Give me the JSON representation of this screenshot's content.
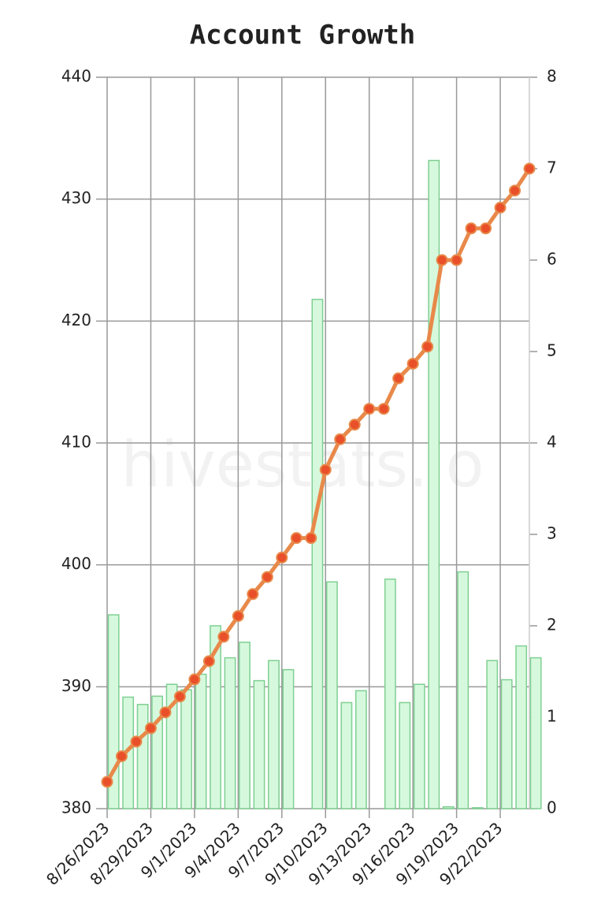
{
  "chart_data": {
    "type": "bar-line",
    "title": "Account Growth",
    "watermark": "hivestats.io",
    "categories": [
      "8/26/2023",
      null,
      null,
      "8/29/2023",
      null,
      null,
      "9/1/2023",
      null,
      null,
      "9/4/2023",
      null,
      null,
      "9/7/2023",
      null,
      null,
      "9/10/2023",
      null,
      null,
      "9/13/2023",
      null,
      null,
      "9/16/2023",
      null,
      null,
      "9/19/2023",
      null,
      null,
      "9/22/2023",
      null,
      null
    ],
    "series": [
      {
        "type": "bar",
        "axis": "y2",
        "color": "#d6f9dd",
        "edge_color": "#7fcf92",
        "values": [
          2.12,
          1.22,
          1.14,
          1.23,
          1.36,
          1.3,
          1.47,
          2.0,
          1.65,
          1.82,
          1.4,
          1.62,
          1.52,
          0,
          5.57,
          2.48,
          1.16,
          1.29,
          0,
          2.51,
          1.16,
          1.36,
          7.09,
          0.02,
          2.59,
          0.01,
          1.62,
          1.41,
          1.78,
          1.65
        ]
      },
      {
        "type": "line",
        "axis": "y",
        "color": "#e8894a",
        "marker_color": "#e9502a",
        "values": [
          382.2,
          384.3,
          385.5,
          386.6,
          387.9,
          389.2,
          390.6,
          392.1,
          394.1,
          395.8,
          397.6,
          399.0,
          400.6,
          402.2,
          402.2,
          407.8,
          410.3,
          411.5,
          412.8,
          412.8,
          415.3,
          416.5,
          417.9,
          425.0,
          425.0,
          427.6,
          427.6,
          429.3,
          430.7,
          432.5
        ]
      }
    ],
    "ylim": [
      380,
      440
    ],
    "yticks": [
      380,
      390,
      400,
      410,
      420,
      430,
      440
    ],
    "y2lim": [
      0,
      8
    ],
    "y2ticks": [
      0,
      1,
      2,
      3,
      4,
      5,
      6,
      7,
      8
    ],
    "grid": true
  }
}
